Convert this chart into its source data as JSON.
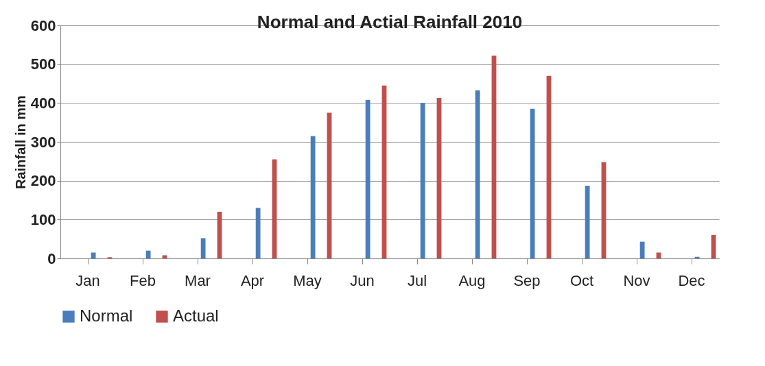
{
  "chart_data": {
    "type": "bar",
    "title": "Normal and Actial Rainfall 2010",
    "ylabel": "Rainfall in mm",
    "categories": [
      "Jan",
      "Feb",
      "Mar",
      "Apr",
      "May",
      "Jun",
      "Jul",
      "Aug",
      "Sep",
      "Oct",
      "Nov",
      "Dec"
    ],
    "series": [
      {
        "name": "Normal",
        "color": "#4a7ebb",
        "values": [
          15,
          20,
          52,
          130,
          315,
          408,
          400,
          433,
          385,
          187,
          43,
          4
        ]
      },
      {
        "name": "Actual",
        "color": "#c0504d",
        "values": [
          3,
          8,
          120,
          255,
          375,
          445,
          413,
          522,
          470,
          248,
          15,
          60
        ]
      }
    ],
    "ylim": [
      0,
      600
    ],
    "yticks": [
      0,
      100,
      200,
      300,
      400,
      500,
      600
    ],
    "grid": "y",
    "legend": "bottom"
  }
}
